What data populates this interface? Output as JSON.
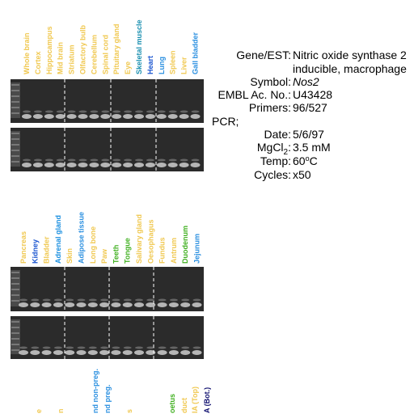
{
  "panels": [
    {
      "lanes": [
        {
          "label": "Whole brain",
          "color": "#f0c850"
        },
        {
          "label": "Cortex",
          "color": "#f0c850"
        },
        {
          "label": "Hippocampus",
          "color": "#f0c850"
        },
        {
          "label": "Mid brain",
          "color": "#f0c850"
        },
        {
          "label": "Striatum",
          "color": "#f0c850"
        },
        {
          "label": "Olfactory bulb",
          "color": "#f0c850"
        },
        {
          "label": "Cerebellum",
          "color": "#f0c850"
        },
        {
          "label": "Spinal cord",
          "color": "#f0c850"
        },
        {
          "label": "Pituitary gland",
          "color": "#f0c850"
        },
        {
          "label": "Eye",
          "color": "#f0c850"
        },
        {
          "label": "Skeletal muscle",
          "color": "#1a8fb0"
        },
        {
          "label": "Heart",
          "color": "#1a55d0"
        },
        {
          "label": "Lung",
          "color": "#2a8fe0"
        },
        {
          "label": "Spleen",
          "color": "#f0c850"
        },
        {
          "label": "Liver",
          "color": "#f0c850"
        },
        {
          "label": "Gall bladder",
          "color": "#2a8fe0"
        }
      ]
    },
    {
      "lanes": [
        {
          "label": "Pancreas",
          "color": "#f0c850"
        },
        {
          "label": "Kidney",
          "color": "#1a55d0"
        },
        {
          "label": "Bladder",
          "color": "#f0c850"
        },
        {
          "label": "Adrenal gland",
          "color": "#1a8fe0"
        },
        {
          "label": "Skin",
          "color": "#f0c850"
        },
        {
          "label": "Adipose tissue",
          "color": "#2a8fe0"
        },
        {
          "label": "Long bone",
          "color": "#f0c850"
        },
        {
          "label": "Paw",
          "color": "#f0c850"
        },
        {
          "label": "Teeth",
          "color": "#40b020"
        },
        {
          "label": "Tongue",
          "color": "#40b020"
        },
        {
          "label": "Salivary gland",
          "color": "#f0c850"
        },
        {
          "label": "Oesophagus",
          "color": "#f0c850"
        },
        {
          "label": "Fundus",
          "color": "#f0c850"
        },
        {
          "label": "Antrum",
          "color": "#f0c850"
        },
        {
          "label": "Duodenum",
          "color": "#40b020"
        },
        {
          "label": "Jejunum",
          "color": "#2a8fe0"
        }
      ]
    },
    {
      "lanes": [
        {
          "label": "e",
          "color": "#f0c850"
        },
        {
          "label": "n",
          "color": "#f0c850"
        },
        {
          "label": "nd non-preg.",
          "color": "#2a8fe0"
        },
        {
          "label": "nd preg.",
          "color": "#2a8fe0"
        },
        {
          "label": "s",
          "color": "#f0c850"
        },
        {
          "label": "oetus",
          "color": "#40b020"
        },
        {
          "label": "duct",
          "color": "#f0c850"
        },
        {
          "label": "IA (Top)",
          "color": "#f0c850"
        },
        {
          "label": "A (Bot.)",
          "color": "#101070"
        }
      ]
    }
  ],
  "info": {
    "gene": {
      "label": "Gene/EST:",
      "lines": [
        "Nitric oxide synthase 2",
        "inducible, macrophage"
      ]
    },
    "symbol": {
      "label": "Symbol:",
      "value": "Nos2"
    },
    "embl": {
      "label": "EMBL Ac. No.:",
      "value": "U43428"
    },
    "primers": {
      "label": "Primers:",
      "value": "96/527"
    },
    "pcr": "PCR;",
    "date": {
      "label": "Date:",
      "value": "5/6/97"
    },
    "mgcl": {
      "label": {
        "text": "MgCl",
        "sub": "2",
        "colon": ":"
      },
      "value": "3.5 mM"
    },
    "temp": {
      "label": "Temp:",
      "value": {
        "text": "60",
        "sup": "o",
        "rest": "C"
      }
    },
    "cycles": {
      "label": "Cycles:",
      "value": "x50"
    }
  }
}
